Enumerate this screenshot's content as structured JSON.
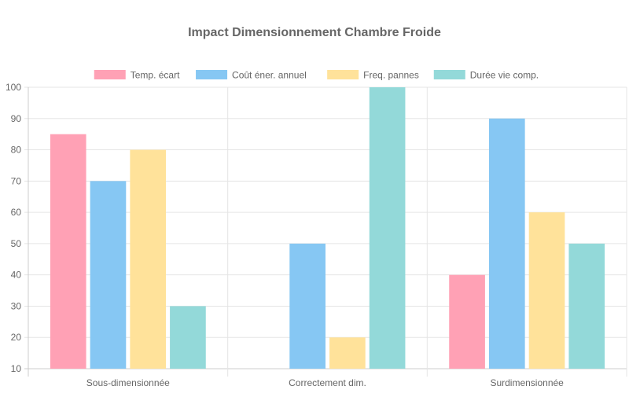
{
  "chart_data": {
    "type": "bar",
    "title": "Impact Dimensionnement Chambre Froide",
    "categories": [
      "Sous-dimensionnée",
      "Correctement dim.",
      "Surdimensionnée"
    ],
    "series": [
      {
        "name": "Temp. écart",
        "values": [
          85,
          10,
          40
        ],
        "color": "#ffa1b5"
      },
      {
        "name": "Coût éner. annuel",
        "values": [
          70,
          50,
          90
        ],
        "color": "#86c7f3"
      },
      {
        "name": "Freq. pannes",
        "values": [
          80,
          20,
          60
        ],
        "color": "#ffe29a"
      },
      {
        "name": "Durée vie comp.",
        "values": [
          30,
          100,
          50
        ],
        "color": "#93d9d9"
      }
    ],
    "ylim": [
      10,
      100
    ],
    "yticks": [
      10,
      20,
      30,
      40,
      50,
      60,
      70,
      80,
      90,
      100
    ],
    "grid": true,
    "legend": "top"
  }
}
